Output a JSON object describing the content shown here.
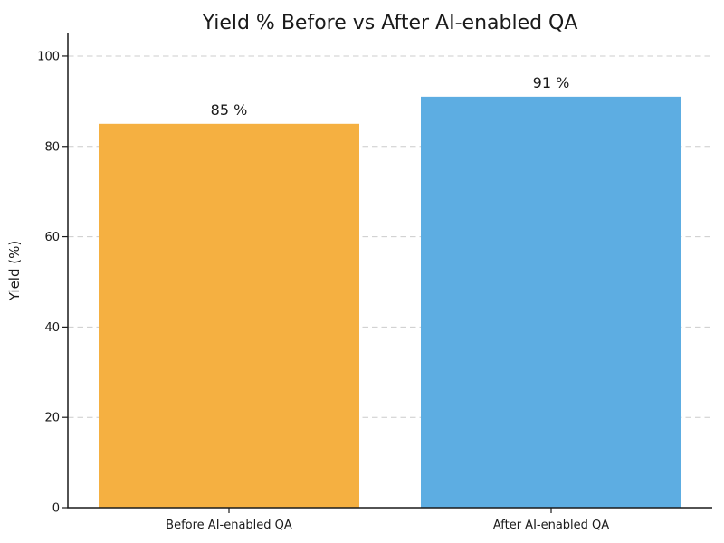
{
  "figure": {
    "background": "#ffffff"
  },
  "chart_data": {
    "type": "bar",
    "title": "Yield % Before vs After AI-enabled QA",
    "xlabel": "",
    "ylabel": "Yield (%)",
    "categories": [
      "Before AI-enabled QA",
      "After AI-enabled QA"
    ],
    "values": [
      85,
      91
    ],
    "value_labels": [
      "85 %",
      "91 %"
    ],
    "bar_colors": [
      "#F5B041",
      "#5DADE2"
    ],
    "ylim": [
      0,
      105
    ],
    "yticks": [
      0,
      20,
      40,
      60,
      80,
      100
    ],
    "grid": {
      "axis": "y",
      "style": "dashed",
      "color": "#cccccc"
    },
    "axis_color": "#1a1a1a",
    "text_color": "#1a1a1a",
    "legend": "none"
  }
}
